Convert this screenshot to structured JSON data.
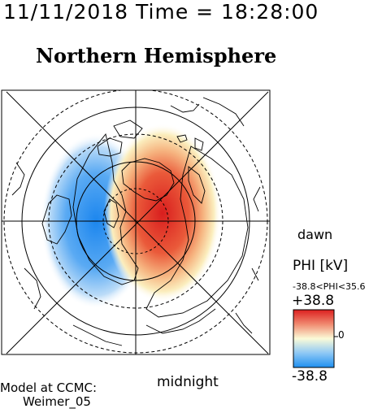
{
  "header": {
    "timestamp": "11/11/2018 Time = 18:28:00",
    "title": "Northern Hemisphere"
  },
  "map": {
    "projection": "polar",
    "hemisphere": "north",
    "latitude_circles_deg": [
      80,
      70,
      60,
      50
    ],
    "meridian_lines_deg": [
      0,
      45,
      90,
      135,
      180,
      225,
      270,
      315
    ],
    "labels": {
      "bottom": "midnight",
      "right": "dawn"
    },
    "potential_pattern": {
      "negative_cell": "dusk side (left), blue",
      "positive_cell": "dawn side (right), red"
    }
  },
  "colorbar": {
    "title": "PHI [kV]",
    "range_text": "-38.8<PHI<35.6",
    "max_label": "+38.8",
    "min_label": "-38.8",
    "zero_label": "0",
    "colors": {
      "top": "#dc1f1f",
      "middle": "#fbfbd8",
      "bottom": "#1e8ff0"
    }
  },
  "credit": {
    "line1": "Model at CCMC:",
    "line2": "Weimer_05"
  }
}
